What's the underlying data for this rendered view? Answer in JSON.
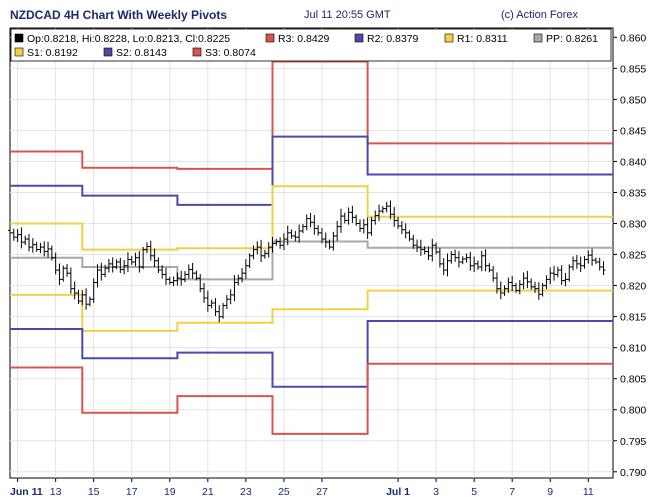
{
  "header": {
    "title": "NZDCAD 4H Chart With Weekly Pivots",
    "timestamp": "Jul 11 20:55 GMT",
    "credit": "(c) Action Forex"
  },
  "legend": [
    {
      "text": "Op:0.8218, Hi:0.8228, Lo:0.8213, Cl:0.8225",
      "color": "#000000"
    },
    {
      "text": "R3: 0.8429",
      "color": "#d9534f"
    },
    {
      "text": "R2: 0.8379",
      "color": "#4a4aa8"
    },
    {
      "text": "R1: 0.8311",
      "color": "#f2d045"
    },
    {
      "text": "PP: 0.8261",
      "color": "#a8a8a8"
    },
    {
      "text": "S1: 0.8192",
      "color": "#f2d045"
    },
    {
      "text": "S2: 0.8143",
      "color": "#4a4aa8"
    },
    {
      "text": "S3: 0.8074",
      "color": "#d9534f"
    }
  ],
  "chart_data": {
    "type": "line",
    "xlabel": "",
    "ylabel": "",
    "ylim": [
      0.789,
      0.8615
    ],
    "y_ticks": [
      "0.790",
      "0.795",
      "0.800",
      "0.805",
      "0.810",
      "0.815",
      "0.820",
      "0.825",
      "0.830",
      "0.835",
      "0.840",
      "0.845",
      "0.850",
      "0.855",
      "0.860"
    ],
    "x_ticks": [
      "Jun 11",
      "13",
      "15",
      "17",
      "19",
      "21",
      "23",
      "25",
      "27",
      "Jul 1",
      "3",
      "5",
      "7",
      "9",
      "11"
    ],
    "x_tick_days": [
      0,
      2,
      4,
      6,
      8,
      10,
      12,
      14,
      16,
      20,
      22,
      24,
      26,
      28,
      30
    ],
    "x_range_days": [
      -0.4,
      31.3
    ],
    "week_starts_days": [
      -0.4,
      3.4,
      8.4,
      13.4,
      18.4,
      23.4,
      31.3
    ],
    "pivot_series": [
      {
        "name": "R3",
        "color": "#d9534f",
        "values": [
          0.8416,
          0.839,
          0.8388,
          0.8561,
          0.8429,
          0.8429
        ]
      },
      {
        "name": "R2",
        "color": "#4a4aa8",
        "values": [
          0.8361,
          0.8345,
          0.833,
          0.844,
          0.8379,
          0.8379
        ]
      },
      {
        "name": "R1",
        "color": "#f2d045",
        "values": [
          0.83,
          0.8258,
          0.826,
          0.836,
          0.8311,
          0.8311
        ]
      },
      {
        "name": "PP",
        "color": "#a8a8a8",
        "values": [
          0.8245,
          0.823,
          0.821,
          0.8271,
          0.8261,
          0.8261
        ]
      },
      {
        "name": "S1",
        "color": "#f2d045",
        "values": [
          0.8185,
          0.8127,
          0.814,
          0.8162,
          0.8192,
          0.8192
        ]
      },
      {
        "name": "S2",
        "color": "#4a4aa8",
        "values": [
          0.813,
          0.8083,
          0.8092,
          0.8037,
          0.8143,
          0.8143
        ]
      },
      {
        "name": "S3",
        "color": "#d9534f",
        "values": [
          0.8068,
          0.7995,
          0.8022,
          0.7961,
          0.8074,
          0.8074
        ]
      }
    ],
    "price_x_days": [
      -0.4,
      -0.2,
      0,
      0.2,
      0.4,
      0.6,
      0.8,
      1,
      1.2,
      1.4,
      1.6,
      1.8,
      2,
      2.2,
      2.4,
      2.6,
      2.8,
      3,
      3.2,
      3.4,
      3.6,
      3.8,
      4,
      4.2,
      4.4,
      4.6,
      4.8,
      5,
      5.2,
      5.4,
      5.6,
      5.8,
      6,
      6.2,
      6.4,
      6.6,
      6.8,
      7,
      7.2,
      7.4,
      7.6,
      7.8,
      8,
      8.2,
      8.4,
      8.6,
      8.8,
      9,
      9.2,
      9.4,
      9.6,
      9.8,
      10,
      10.2,
      10.4,
      10.6,
      10.8,
      11,
      11.2,
      11.4,
      11.6,
      11.8,
      12,
      12.2,
      12.4,
      12.6,
      12.8,
      13,
      13.2,
      13.4,
      13.6,
      13.8,
      14,
      14.2,
      14.4,
      14.6,
      14.8,
      15,
      15.2,
      15.4,
      15.6,
      15.8,
      16,
      16.2,
      16.4,
      16.6,
      16.8,
      17,
      17.2,
      17.4,
      17.6,
      17.8,
      18,
      18.2,
      18.4,
      18.6,
      18.8,
      19,
      19.2,
      19.4,
      19.6,
      19.8,
      20,
      20.2,
      20.4,
      20.6,
      20.8,
      21,
      21.2,
      21.4,
      21.6,
      21.8,
      22,
      22.2,
      22.4,
      22.6,
      22.8,
      23,
      23.2,
      23.4,
      23.6,
      23.8,
      24,
      24.2,
      24.4,
      24.6,
      24.8,
      25,
      25.2,
      25.4,
      25.6,
      25.8,
      26,
      26.2,
      26.4,
      26.6,
      26.8,
      27,
      27.2,
      27.4,
      27.6,
      27.8,
      28,
      28.2,
      28.4,
      28.6,
      28.8,
      29,
      29.2,
      29.4,
      29.6,
      29.8,
      30,
      30.2,
      30.4,
      30.6,
      30.8,
      31
    ],
    "price_close": [
      0.8285,
      0.8278,
      0.8282,
      0.827,
      0.8275,
      0.8262,
      0.8266,
      0.8258,
      0.8262,
      0.8255,
      0.8259,
      0.8245,
      0.8225,
      0.821,
      0.8228,
      0.822,
      0.8195,
      0.8188,
      0.8175,
      0.8185,
      0.817,
      0.8178,
      0.8205,
      0.8225,
      0.8218,
      0.8228,
      0.8235,
      0.823,
      0.8238,
      0.8226,
      0.8232,
      0.8242,
      0.8238,
      0.8245,
      0.823,
      0.8258,
      0.8263,
      0.8248,
      0.824,
      0.8225,
      0.8218,
      0.821,
      0.8205,
      0.8208,
      0.8212,
      0.821,
      0.8218,
      0.8226,
      0.822,
      0.8212,
      0.8195,
      0.818,
      0.8168,
      0.8172,
      0.8158,
      0.815,
      0.8168,
      0.8178,
      0.8185,
      0.8205,
      0.8212,
      0.822,
      0.8232,
      0.8248,
      0.8258,
      0.8262,
      0.8248,
      0.8252,
      0.8262,
      0.8268,
      0.8271,
      0.8265,
      0.8275,
      0.8285,
      0.828,
      0.8278,
      0.8288,
      0.8295,
      0.8308,
      0.8302,
      0.8292,
      0.8285,
      0.8275,
      0.827,
      0.8262,
      0.828,
      0.8295,
      0.8312,
      0.8305,
      0.8318,
      0.831,
      0.83,
      0.8292,
      0.8298,
      0.8285,
      0.8305,
      0.8313,
      0.832,
      0.8324,
      0.8328,
      0.8315,
      0.8305,
      0.8296,
      0.829,
      0.8285,
      0.8275,
      0.8265,
      0.8262,
      0.8258,
      0.8255,
      0.8248,
      0.8265,
      0.8254,
      0.8235,
      0.8225,
      0.824,
      0.825,
      0.8245,
      0.8238,
      0.8243,
      0.8245,
      0.8232,
      0.8235,
      0.823,
      0.8248,
      0.8232,
      0.8225,
      0.8212,
      0.8195,
      0.8188,
      0.8195,
      0.8205,
      0.82,
      0.8192,
      0.8202,
      0.8212,
      0.8206,
      0.8198,
      0.8195,
      0.8186,
      0.82,
      0.821,
      0.822,
      0.8218,
      0.8225,
      0.8208,
      0.821,
      0.823,
      0.824,
      0.8235,
      0.8232,
      0.8242,
      0.8249,
      0.8241,
      0.8238,
      0.823,
      0.8225
    ],
    "ohlc_box": {
      "open": 0.8218,
      "high": 0.8228,
      "low": 0.8213,
      "close": 0.8225
    }
  }
}
